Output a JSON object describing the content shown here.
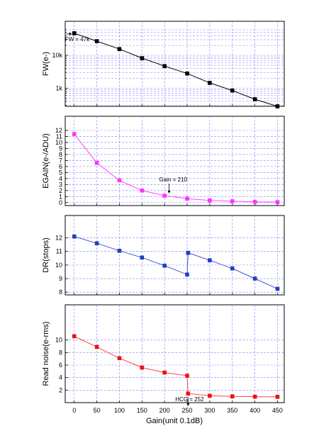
{
  "xlabel": "Gain(unit 0.1dB)",
  "x_ticks": [
    "0",
    "50",
    "100",
    "150",
    "200",
    "250",
    "300",
    "350",
    "400",
    "450"
  ],
  "chart_data": [
    {
      "type": "line",
      "ylabel": "FW(e-)",
      "yscale": "log",
      "ylim": [
        280,
        60000
      ],
      "y_ticks": [
        {
          "value": 1000,
          "label": "1k"
        },
        {
          "value": 10000,
          "label": "10k"
        }
      ],
      "xlim": [
        -20,
        465
      ],
      "color": "#000000",
      "marker_color": "#000000",
      "series": [
        {
          "x": [
            0,
            50,
            100,
            150,
            200,
            250,
            300,
            350,
            400,
            450
          ],
          "y": [
            47000,
            27000,
            15500,
            8200,
            4700,
            2800,
            1450,
            850,
            460,
            280
          ]
        }
      ],
      "annotations": [
        {
          "text": "FW = 47k",
          "x": 0,
          "y": 47000
        }
      ]
    },
    {
      "type": "line",
      "ylabel": "EGAIN(e-/ADU)",
      "ylim": [
        -0.5,
        12
      ],
      "y_ticks": [
        0,
        1,
        2,
        3,
        4,
        5,
        6,
        7,
        8,
        9,
        10,
        11,
        12
      ],
      "xlim": [
        -20,
        465
      ],
      "color": "#ff44ff",
      "marker_color": "#ff33ff",
      "series": [
        {
          "x": [
            0,
            50,
            100,
            150,
            200,
            250,
            300,
            350,
            400,
            450
          ],
          "y": [
            11.4,
            6.6,
            3.7,
            2.0,
            1.15,
            0.65,
            0.35,
            0.22,
            0.12,
            0.07
          ]
        }
      ],
      "annotations": [
        {
          "text": "Gain = 210",
          "x": 210,
          "y": 1.15
        }
      ]
    },
    {
      "type": "line",
      "ylabel": "DR(stops)",
      "ylim": [
        7.8,
        12.5
      ],
      "y_ticks": [
        8,
        9,
        10,
        11,
        12
      ],
      "xlim": [
        -20,
        465
      ],
      "color": "#4455cc",
      "marker_color": "#1f3fbf",
      "series": [
        {
          "x": [
            0,
            50,
            100,
            150,
            200,
            250,
            252,
            300,
            350,
            400,
            450
          ],
          "y": [
            12.1,
            11.6,
            11.05,
            10.55,
            9.95,
            9.3,
            10.9,
            10.35,
            9.75,
            9.0,
            8.25
          ]
        }
      ],
      "annotations": []
    },
    {
      "type": "line",
      "ylabel": "Read noise(e-rms)",
      "ylim": [
        0,
        12
      ],
      "y_ticks": [
        2,
        4,
        6,
        8,
        10
      ],
      "xlim": [
        -20,
        465
      ],
      "color": "#ff4444",
      "marker_color": "#ee1111",
      "series": [
        {
          "x": [
            0,
            50,
            100,
            150,
            200,
            250,
            252,
            300,
            350,
            400,
            450
          ],
          "y": [
            10.6,
            8.9,
            7.1,
            5.6,
            4.8,
            4.3,
            1.45,
            1.1,
            1.0,
            0.95,
            0.92
          ]
        }
      ],
      "annotations": [
        {
          "text": "HCG = 252",
          "x": 252,
          "y": 1.45
        }
      ]
    }
  ]
}
